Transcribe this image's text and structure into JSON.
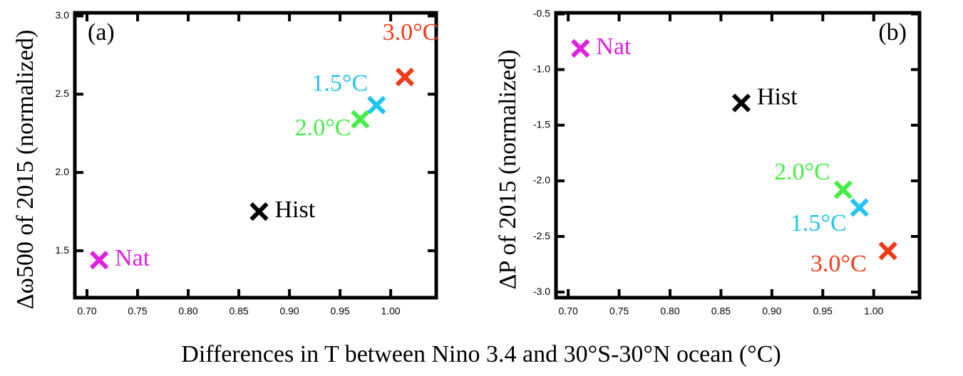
{
  "chart_data": [
    {
      "type": "scatter",
      "panel_label": "(a)",
      "ylabel": "Δω500 of 2015 (normalized)",
      "xlabel": "Differences in T between Nino 3.4 and 30°S-30°N ocean (°C)",
      "xlim": [
        0.688,
        1.045
      ],
      "ylim": [
        1.2,
        3.02
      ],
      "xticks": [
        {
          "value": 0.7,
          "label": "0.70"
        },
        {
          "value": 0.75,
          "label": "0.75"
        },
        {
          "value": 0.8,
          "label": "0.80"
        },
        {
          "value": 0.85,
          "label": "0.85"
        },
        {
          "value": 0.9,
          "label": "0.90"
        },
        {
          "value": 0.95,
          "label": "0.95"
        },
        {
          "value": 1.0,
          "label": "1.00"
        }
      ],
      "yticks": [
        {
          "value": 1.5,
          "label": "1.5"
        },
        {
          "value": 2.0,
          "label": "2.0"
        },
        {
          "value": 2.5,
          "label": "2.5"
        },
        {
          "value": 3.0,
          "label": "3.0"
        }
      ],
      "series": [
        {
          "name": "Nat",
          "color": "#e020e0",
          "x": [
            0.712
          ],
          "values": [
            1.44
          ]
        },
        {
          "name": "Hist",
          "color": "#000000",
          "x": [
            0.87
          ],
          "values": [
            1.75
          ]
        },
        {
          "name": "1.5°C",
          "color": "#22c4f4",
          "x": [
            0.986
          ],
          "values": [
            2.43
          ]
        },
        {
          "name": "2.0°C",
          "color": "#44ee44",
          "x": [
            0.97
          ],
          "values": [
            2.34
          ]
        },
        {
          "name": "3.0°C",
          "color": "#f03a14",
          "x": [
            1.014
          ],
          "values": [
            2.61
          ]
        }
      ]
    },
    {
      "type": "scatter",
      "panel_label": "(b)",
      "ylabel": "ΔP of 2015 (normalized)",
      "xlim": [
        0.688,
        1.045
      ],
      "ylim": [
        -3.05,
        -0.49
      ],
      "xticks": [
        {
          "value": 0.7,
          "label": "0.70"
        },
        {
          "value": 0.75,
          "label": "0.75"
        },
        {
          "value": 0.8,
          "label": "0.80"
        },
        {
          "value": 0.85,
          "label": "0.85"
        },
        {
          "value": 0.9,
          "label": "0.90"
        },
        {
          "value": 0.95,
          "label": "0.95"
        },
        {
          "value": 1.0,
          "label": "1.00"
        }
      ],
      "yticks": [
        {
          "value": -3.0,
          "label": "-3.0"
        },
        {
          "value": -2.5,
          "label": "-2.5"
        },
        {
          "value": -2.0,
          "label": "-2.0"
        },
        {
          "value": -1.5,
          "label": "-1.5"
        },
        {
          "value": -1.0,
          "label": "-1.0"
        },
        {
          "value": -0.5,
          "label": "-0.5"
        }
      ],
      "series": [
        {
          "name": "Nat",
          "color": "#e020e0",
          "x": [
            0.712
          ],
          "values": [
            -0.81
          ]
        },
        {
          "name": "Hist",
          "color": "#000000",
          "x": [
            0.87
          ],
          "values": [
            -1.3
          ]
        },
        {
          "name": "1.5°C",
          "color": "#22c4f4",
          "x": [
            0.986
          ],
          "values": [
            -2.24
          ]
        },
        {
          "name": "2.0°C",
          "color": "#44ee44",
          "x": [
            0.97
          ],
          "values": [
            -2.08
          ]
        },
        {
          "name": "3.0°C",
          "color": "#f03a14",
          "x": [
            1.014
          ],
          "values": [
            -2.63
          ]
        }
      ]
    }
  ]
}
